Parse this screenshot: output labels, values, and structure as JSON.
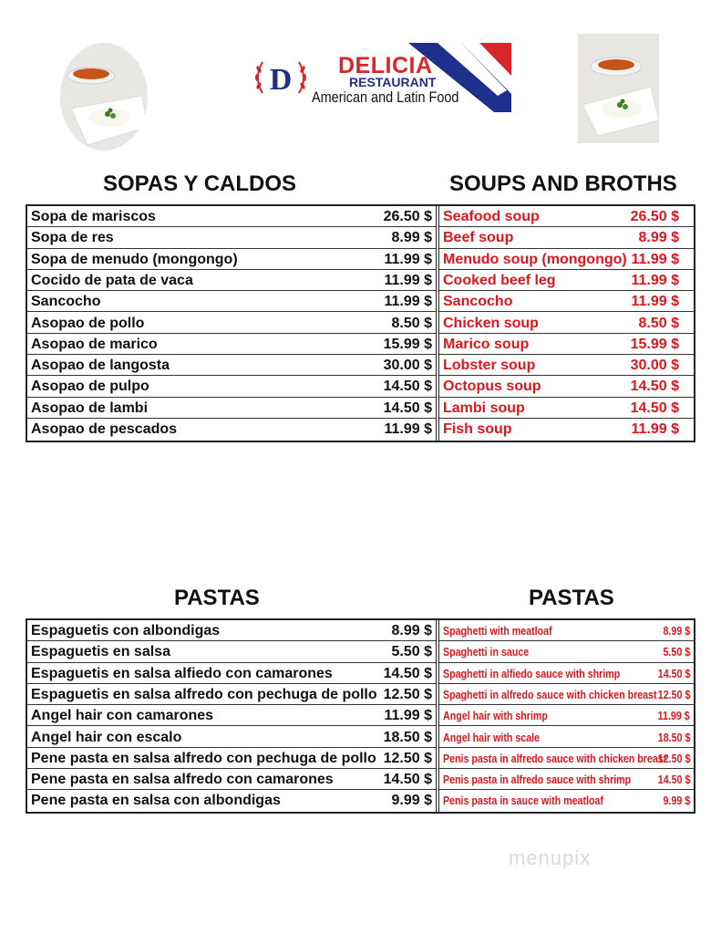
{
  "brand": {
    "letter": "D",
    "name": "DELICIA",
    "subtitle": "RESTAURANT",
    "tagline": "American and Latin Food"
  },
  "colors": {
    "red": "#e0161c",
    "blue": "#1f2f8c"
  },
  "soups": {
    "heading_es": "SOPAS Y CALDOS",
    "heading_en": "SOUPS AND BROTHS",
    "items": [
      {
        "es": "Sopa de mariscos",
        "es_price": "26.50 $",
        "en": "Seafood soup",
        "en_price": "26.50 $"
      },
      {
        "es": "Sopa de res",
        "es_price": "8.99 $",
        "en": "Beef soup",
        "en_price": "8.99 $"
      },
      {
        "es": "Sopa de menudo (mongongo)",
        "es_price": "11.99 $",
        "en": "Menudo soup (mongongo)",
        "en_price": "11.99 $"
      },
      {
        "es": "Cocido de pata de vaca",
        "es_price": "11.99 $",
        "en": "Cooked beef leg",
        "en_price": "11.99 $"
      },
      {
        "es": "Sancocho",
        "es_price": "11.99 $",
        "en": "Sancocho",
        "en_price": "11.99 $"
      },
      {
        "es": "Asopao de pollo",
        "es_price": "8.50 $",
        "en": "Chicken soup",
        "en_price": "8.50 $"
      },
      {
        "es": "Asopao de marico",
        "es_price": "15.99 $",
        "en": "Marico soup",
        "en_price": "15.99 $"
      },
      {
        "es": "Asopao de langosta",
        "es_price": "30.00 $",
        "en": "Lobster soup",
        "en_price": "30.00 $"
      },
      {
        "es": "Asopao de pulpo",
        "es_price": "14.50 $",
        "en": "Octopus soup",
        "en_price": "14.50 $"
      },
      {
        "es": "Asopao de lambi",
        "es_price": "14.50 $",
        "en": "Lambi soup",
        "en_price": "14.50 $"
      },
      {
        "es": "Asopao de pescados",
        "es_price": "11.99 $",
        "en": "Fish soup",
        "en_price": "11.99 $"
      }
    ]
  },
  "pastas": {
    "heading_es": "PASTAS",
    "heading_en": "PASTAS",
    "items": [
      {
        "es": "Espaguetis con albondigas",
        "es_price": "8.99 $",
        "en": "Spaghetti with meatloaf",
        "en_price": "8.99 $"
      },
      {
        "es": "Espaguetis en salsa",
        "es_price": "5.50 $",
        "en": "Spaghetti in sauce",
        "en_price": "5.50 $"
      },
      {
        "es": "Espaguetis en salsa alfiedo con camarones",
        "es_price": "14.50 $",
        "en": "Spaghetti in alfiedo sauce with shrimp",
        "en_price": "14.50 $"
      },
      {
        "es": "Espaguetis en salsa alfredo con pechuga de pollo",
        "es_price": "12.50 $",
        "en": "Spaghetti in alfredo sauce with chicken breast",
        "en_price": "12.50 $"
      },
      {
        "es": "Angel hair con camarones",
        "es_price": "11.99 $",
        "en": "Angel hair with shrimp",
        "en_price": "11.99 $"
      },
      {
        "es": "Angel hair con escalo",
        "es_price": "18.50 $",
        "en": "Angel hair with scale",
        "en_price": "18.50 $"
      },
      {
        "es": "Pene pasta en salsa alfredo con pechuga de pollo",
        "es_price": "12.50 $",
        "en": "Penis pasta in alfredo sauce with chicken breast",
        "en_price": "12.50 $"
      },
      {
        "es": "Pene pasta en salsa alfredo con camarones",
        "es_price": "14.50 $",
        "en": "Penis pasta in alfredo sauce with shrimp",
        "en_price": "14.50 $"
      },
      {
        "es": "Pene pasta en salsa con albondigas",
        "es_price": "9.99 $",
        "en": "Penis pasta in sauce with meatloaf",
        "en_price": "9.99 $"
      }
    ]
  },
  "watermark": "menupix"
}
